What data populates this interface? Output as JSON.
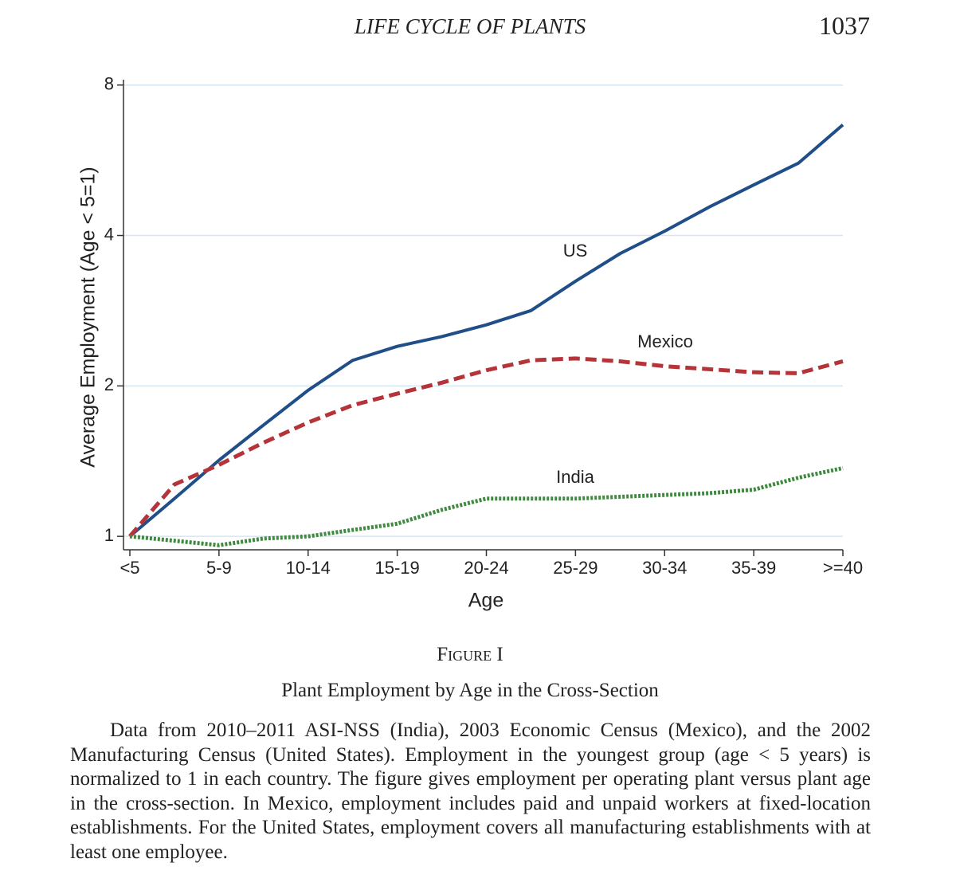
{
  "header": {
    "running_title": "LIFE CYCLE OF PLANTS",
    "page_number": "1037"
  },
  "chart_data": {
    "type": "line",
    "ylabel": "Average Employment (Age < 5=1)",
    "xlabel": "Age",
    "categories": [
      "<5",
      null,
      "5-9",
      null,
      "10-14",
      null,
      "15-19",
      null,
      "20-24",
      null,
      "25-29",
      null,
      "30-34",
      null,
      "35-39",
      null,
      ">=40"
    ],
    "series": [
      {
        "name": "US",
        "color": "#1f4e89",
        "dash": "solid",
        "values": [
          1,
          1.19,
          1.42,
          1.67,
          1.96,
          2.25,
          2.4,
          2.51,
          2.65,
          2.83,
          3.24,
          3.68,
          4.08,
          4.56,
          5.05,
          5.58,
          6.66
        ]
      },
      {
        "name": "Mexico",
        "color": "#b5343a",
        "dash": "dashed",
        "values": [
          1,
          1.27,
          1.39,
          1.54,
          1.69,
          1.83,
          1.93,
          2.03,
          2.15,
          2.25,
          2.27,
          2.24,
          2.19,
          2.16,
          2.13,
          2.12,
          2.24
        ]
      },
      {
        "name": "India",
        "color": "#3e8a3e",
        "dash": "dotted",
        "values": [
          1,
          0.98,
          0.96,
          0.99,
          1.0,
          1.03,
          1.06,
          1.13,
          1.19,
          1.19,
          1.19,
          1.2,
          1.21,
          1.22,
          1.24,
          1.31,
          1.37
        ]
      }
    ],
    "ylim": [
      0.94,
      8.2
    ],
    "yticks": [
      1,
      2,
      4,
      8
    ],
    "log_y": true,
    "grid": true
  },
  "caption": {
    "label": "Figure I",
    "title": "Plant Employment by Age in the Cross-Section",
    "text": "Data from 2010–2011 ASI-NSS (India), 2003 Economic Census (Mexico), and the 2002 Manufacturing Census (United States). Employment in the youngest group (age < 5 years) is normalized to 1 in each country. The figure gives employment per operating plant versus plant age in the cross-section. In Mexico, employment includes paid and unpaid workers at fixed-location establishments. For the United States, employment covers all manufacturing establishments with at least one employee."
  }
}
